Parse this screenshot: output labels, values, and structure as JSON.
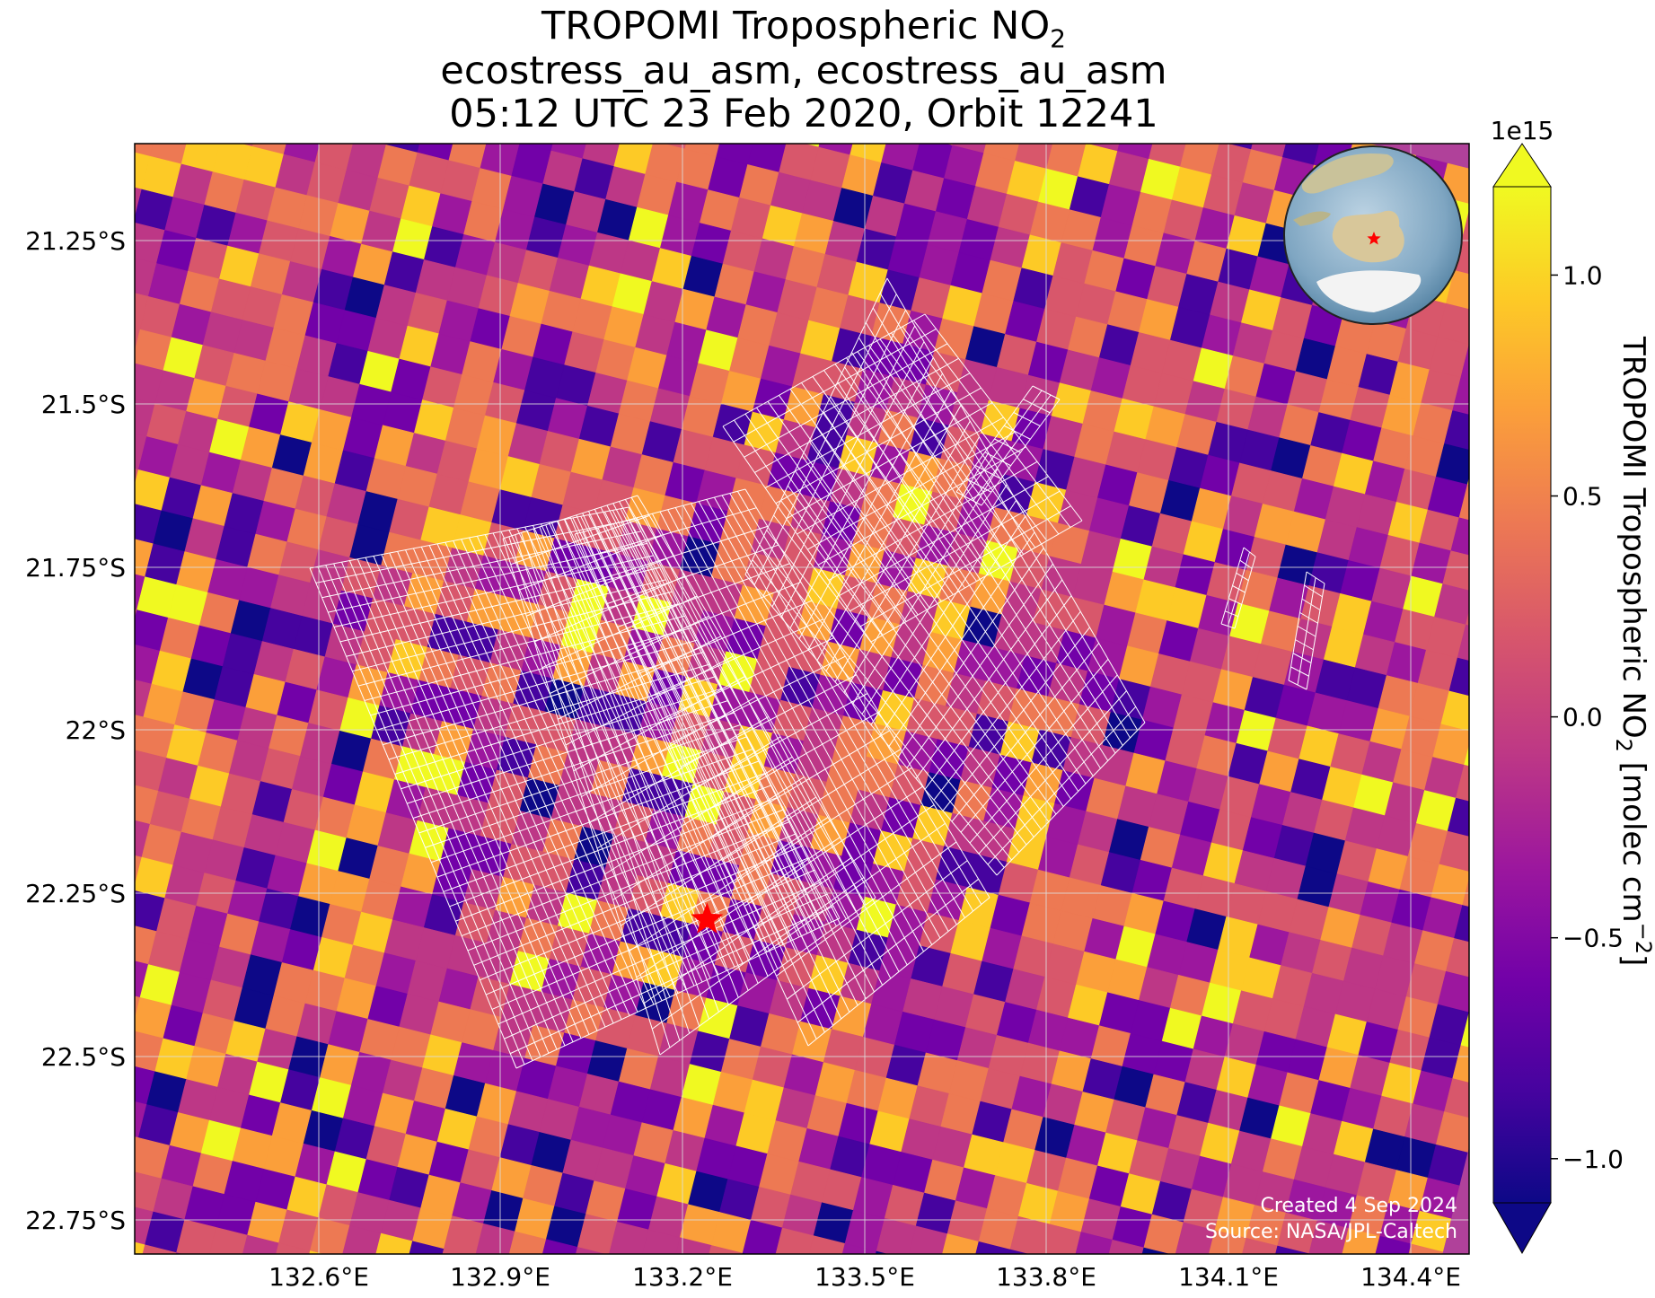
{
  "title": {
    "line1_prefix": "TROPOMI Tropospheric NO",
    "line1_sub": "2",
    "line2": "ecostress_au_asm, ecostress_au_asm",
    "line3": "05:12 UTC 23 Feb 2020, Orbit 12241"
  },
  "map": {
    "lat_ticks": [
      "21.25°S",
      "21.5°S",
      "21.75°S",
      "22°S",
      "22.25°S",
      "22.5°S",
      "22.75°S"
    ],
    "lon_ticks": [
      "132.6°E",
      "132.9°E",
      "133.2°E",
      "133.5°E",
      "133.8°E",
      "134.1°E",
      "134.4°E"
    ],
    "site_marker": {
      "label": "site-star",
      "lon": 133.24,
      "lat": -22.29,
      "color": "#ff0000"
    },
    "credits": {
      "created": "Created 4 Sep 2024",
      "source": "Source: NASA/JPL-Caltech"
    },
    "inset_globe": {
      "marker_color": "#ff0000"
    }
  },
  "colorbar": {
    "label_prefix": "TROPOMI Tropospheric NO",
    "label_sub": "2",
    "label_suffix": " [molec cm",
    "label_sup": "−2",
    "label_end": "]",
    "multiplier": "1e15",
    "colormap": "plasma",
    "ticks": [
      "1.0",
      "0.5",
      "0.0",
      "−0.5",
      "−1.0"
    ],
    "tick_values": [
      1.0,
      0.5,
      0.0,
      -0.5,
      -1.0
    ],
    "vmin": -1.1,
    "vmax": 1.2
  },
  "colors": {
    "gridline": "#dddddd",
    "footprint_outline": "#ffffff",
    "plasma": [
      "#0d0887",
      "#46039f",
      "#7201a8",
      "#9c179e",
      "#bd3786",
      "#d8576b",
      "#ed7953",
      "#fb9f3a",
      "#fdca26",
      "#f0f921"
    ]
  }
}
